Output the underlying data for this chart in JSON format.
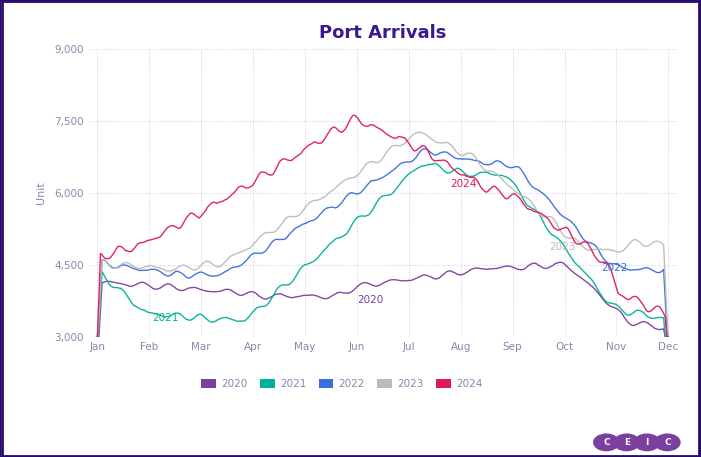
{
  "title": "Port Arrivals",
  "ylabel": "Unit",
  "ylim": [
    3000,
    9000
  ],
  "yticks": [
    3000,
    4500,
    6000,
    7500,
    9000
  ],
  "months": [
    "Jan",
    "Feb",
    "Mar",
    "Apr",
    "May",
    "Jun",
    "Jul",
    "Aug",
    "Sep",
    "Oct",
    "Nov",
    "Dec"
  ],
  "colors": {
    "2020": "#7B3FA0",
    "2021": "#00B09B",
    "2022": "#3B6EDB",
    "2023": "#BBBBBB",
    "2024": "#E0185C"
  },
  "background": "#FFFFFF",
  "grid_color": "#CCCCDD",
  "border_color": "#2A0A6E",
  "title_color": "#3A1A8E",
  "label_color": "#8888AA",
  "tick_color": "#8888AA",
  "ceic_color": "#7B3FA0"
}
